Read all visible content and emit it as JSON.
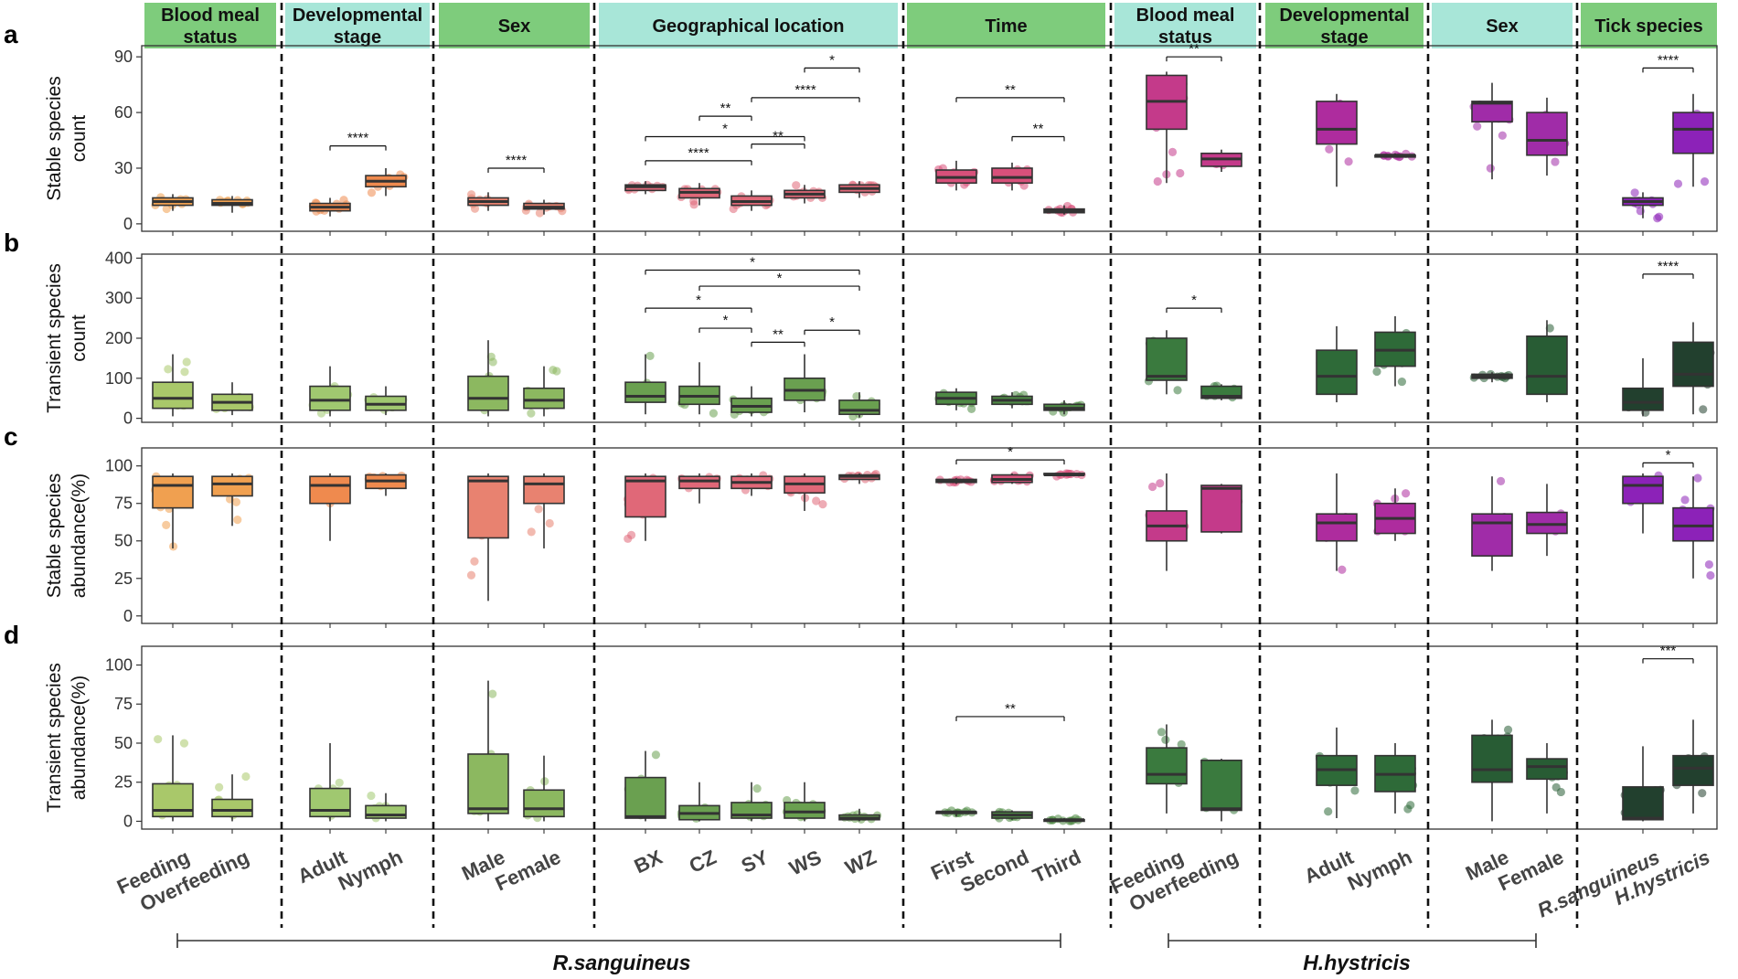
{
  "figure": {
    "panel_letters": [
      "a",
      "b",
      "c",
      "d"
    ],
    "y_labels": [
      [
        "Stable species",
        "count"
      ],
      [
        "Transient species",
        "count"
      ],
      [
        "Stable species",
        "abundance(%)"
      ],
      [
        "Transient species",
        "abundance(%)"
      ]
    ],
    "headers": [
      {
        "lines": [
          "Blood meal",
          "status"
        ],
        "color": "#7ECC7C"
      },
      {
        "lines": [
          "Developmental",
          "stage"
        ],
        "color": "#A8E6D8"
      },
      {
        "lines": [
          "Sex"
        ],
        "color": "#7ECC7C"
      },
      {
        "lines": [
          "Geographical location"
        ],
        "color": "#A8E6D8"
      },
      {
        "lines": [
          "Time"
        ],
        "color": "#7ECC7C"
      },
      {
        "lines": [
          "Blood meal",
          "status"
        ],
        "color": "#A8E6D8"
      },
      {
        "lines": [
          "Developmental",
          "stage"
        ],
        "color": "#7ECC7C"
      },
      {
        "lines": [
          "Sex"
        ],
        "color": "#A8E6D8"
      },
      {
        "lines": [
          "Tick species"
        ],
        "color": "#7ECC7C"
      }
    ],
    "host_labels": [
      "R.sanguineus",
      "H.hystricis"
    ]
  },
  "chart_data": [
    {
      "type": "box",
      "panel": "a",
      "ylabel": "Stable species count",
      "ylim": [
        -4,
        96
      ],
      "yticks": [
        0,
        30,
        60,
        90
      ],
      "categories": [
        "Feeding",
        "Overfeeding",
        "Adult",
        "Nymph",
        "Male",
        "Female",
        "BX",
        "CZ",
        "SY",
        "WS",
        "WZ",
        "First",
        "Second",
        "Third",
        "Feeding",
        "Overfeeding",
        "Adult",
        "Nymph",
        "Male",
        "Female",
        "R.sanguineus",
        "H.hystricis"
      ],
      "colors": [
        "#F0A050",
        "#F0A050",
        "#EF8A4E",
        "#EF8A4E",
        "#E88270",
        "#E88270",
        "#E06878",
        "#E06878",
        "#E06878",
        "#E06878",
        "#E06878",
        "#D8507A",
        "#D8507A",
        "#D8507A",
        "#C43A8A",
        "#C43A8A",
        "#AE2C9E",
        "#AE2C9E",
        "#A02CA8",
        "#A02CA8",
        "#8C22B8",
        "#8C22B8"
      ],
      "boxes": [
        [
          7,
          10,
          12,
          14,
          16
        ],
        [
          6,
          10,
          11,
          13,
          15
        ],
        [
          4,
          7,
          9,
          11,
          14
        ],
        [
          15,
          20,
          23,
          26,
          30
        ],
        [
          7,
          10,
          12,
          14,
          17
        ],
        [
          5,
          8,
          9,
          11,
          13
        ],
        [
          16,
          18,
          20,
          21,
          23
        ],
        [
          10,
          14,
          17,
          19,
          22
        ],
        [
          7,
          10,
          12,
          15,
          18
        ],
        [
          11,
          14,
          16,
          18,
          21
        ],
        [
          14,
          17,
          19,
          21,
          23
        ],
        [
          18,
          22,
          25,
          29,
          34
        ],
        [
          18,
          22,
          25,
          30,
          33
        ],
        [
          5,
          6,
          7,
          8,
          10
        ],
        [
          22,
          51,
          66,
          80,
          82
        ],
        [
          28,
          31,
          35,
          38,
          40
        ],
        [
          20,
          43,
          51,
          66,
          70
        ],
        [
          36,
          36,
          37,
          37,
          38
        ],
        [
          24,
          55,
          65,
          66,
          76
        ],
        [
          26,
          37,
          45,
          60,
          68
        ],
        [
          3,
          10,
          12,
          14,
          17
        ],
        [
          20,
          38,
          51,
          60,
          70
        ]
      ],
      "annotations": [
        {
          "from": 2,
          "to": 3,
          "y": 42,
          "label": "****"
        },
        {
          "from": 4,
          "to": 5,
          "y": 30,
          "label": "****"
        },
        {
          "from": 6,
          "to": 8,
          "y": 34,
          "label": "****"
        },
        {
          "from": 6,
          "to": 9,
          "y": 47,
          "label": "*"
        },
        {
          "from": 7,
          "to": 8,
          "y": 58,
          "label": "**"
        },
        {
          "from": 8,
          "to": 9,
          "y": 43,
          "label": "**"
        },
        {
          "from": 8,
          "to": 10,
          "y": 68,
          "label": "****"
        },
        {
          "from": 9,
          "to": 10,
          "y": 84,
          "label": "*"
        },
        {
          "from": 11,
          "to": 13,
          "y": 68,
          "label": "**"
        },
        {
          "from": 12,
          "to": 13,
          "y": 47,
          "label": "**"
        },
        {
          "from": 14,
          "to": 15,
          "y": 90,
          "label": "**"
        },
        {
          "from": 20,
          "to": 21,
          "y": 84,
          "label": "****"
        }
      ]
    },
    {
      "type": "box",
      "panel": "b",
      "ylabel": "Transient species count",
      "ylim": [
        -10,
        410
      ],
      "yticks": [
        0,
        100,
        200,
        300,
        400
      ],
      "categories": [
        "Feeding",
        "Overfeeding",
        "Adult",
        "Nymph",
        "Male",
        "Female",
        "BX",
        "CZ",
        "SY",
        "WS",
        "WZ",
        "First",
        "Second",
        "Third",
        "Feeding",
        "Overfeeding",
        "Adult",
        "Nymph",
        "Male",
        "Female",
        "R.sanguineus",
        "H.hystricis"
      ],
      "colors": [
        "#A9C86A",
        "#A9C86A",
        "#A0C870",
        "#A0C870",
        "#8CB860",
        "#8CB860",
        "#6AA050",
        "#6AA050",
        "#6AA050",
        "#6AA050",
        "#6AA050",
        "#4E8A44",
        "#4E8A44",
        "#4E8A44",
        "#3A7A3E",
        "#3A7A3E",
        "#2E6A38",
        "#2E6A38",
        "#285C34",
        "#285C34",
        "#22402E",
        "#22402E"
      ],
      "boxes": [
        [
          5,
          25,
          50,
          90,
          160
        ],
        [
          8,
          20,
          40,
          60,
          90
        ],
        [
          5,
          20,
          45,
          80,
          130
        ],
        [
          8,
          20,
          35,
          55,
          80
        ],
        [
          5,
          20,
          50,
          105,
          195
        ],
        [
          5,
          25,
          45,
          75,
          130
        ],
        [
          10,
          40,
          55,
          90,
          160
        ],
        [
          10,
          35,
          55,
          80,
          140
        ],
        [
          5,
          15,
          30,
          50,
          80
        ],
        [
          15,
          45,
          70,
          100,
          160
        ],
        [
          2,
          10,
          20,
          45,
          65
        ],
        [
          20,
          35,
          50,
          65,
          75
        ],
        [
          25,
          35,
          45,
          55,
          65
        ],
        [
          10,
          20,
          25,
          35,
          45
        ],
        [
          60,
          95,
          105,
          200,
          220
        ],
        [
          45,
          50,
          55,
          80,
          85
        ],
        [
          40,
          60,
          105,
          170,
          230
        ],
        [
          80,
          130,
          170,
          215,
          255
        ],
        [
          90,
          100,
          105,
          110,
          115
        ],
        [
          40,
          60,
          105,
          205,
          245
        ],
        [
          5,
          20,
          40,
          75,
          150
        ],
        [
          10,
          80,
          110,
          190,
          240
        ]
      ],
      "annotations": [
        {
          "from": 6,
          "to": 10,
          "y": 370,
          "label": "*"
        },
        {
          "from": 7,
          "to": 10,
          "y": 330,
          "label": "*"
        },
        {
          "from": 6,
          "to": 8,
          "y": 275,
          "label": "*"
        },
        {
          "from": 7,
          "to": 8,
          "y": 225,
          "label": "*"
        },
        {
          "from": 8,
          "to": 9,
          "y": 190,
          "label": "**"
        },
        {
          "from": 9,
          "to": 10,
          "y": 220,
          "label": "*"
        },
        {
          "from": 14,
          "to": 15,
          "y": 275,
          "label": "*"
        },
        {
          "from": 20,
          "to": 21,
          "y": 360,
          "label": "****"
        }
      ]
    },
    {
      "type": "box",
      "panel": "c",
      "ylabel": "Stable species abundance(%)",
      "ylim": [
        -5,
        112
      ],
      "yticks": [
        0,
        25,
        50,
        75,
        100
      ],
      "categories": [
        "Feeding",
        "Overfeeding",
        "Adult",
        "Nymph",
        "Male",
        "Female",
        "BX",
        "CZ",
        "SY",
        "WS",
        "WZ",
        "First",
        "Second",
        "Third",
        "Feeding",
        "Overfeeding",
        "Adult",
        "Nymph",
        "Male",
        "Female",
        "R.sanguineus",
        "H.hystricis"
      ],
      "colors": [
        "#F0A050",
        "#F0A050",
        "#EF8A4E",
        "#EF8A4E",
        "#E88270",
        "#E88270",
        "#E06878",
        "#E06878",
        "#E06878",
        "#E06878",
        "#E06878",
        "#D8507A",
        "#D8507A",
        "#D8507A",
        "#C43A8A",
        "#C43A8A",
        "#AE2C9E",
        "#AE2C9E",
        "#A02CA8",
        "#A02CA8",
        "#8C22B8",
        "#8C22B8"
      ],
      "boxes": [
        [
          45,
          72,
          87,
          93,
          95
        ],
        [
          60,
          80,
          88,
          93,
          95
        ],
        [
          50,
          75,
          87,
          93,
          95
        ],
        [
          80,
          85,
          90,
          94,
          95
        ],
        [
          10,
          52,
          90,
          93,
          95
        ],
        [
          45,
          75,
          88,
          93,
          95
        ],
        [
          50,
          66,
          90,
          93,
          95
        ],
        [
          75,
          85,
          90,
          93,
          95
        ],
        [
          80,
          85,
          89,
          93,
          95
        ],
        [
          70,
          82,
          88,
          93,
          95
        ],
        [
          88,
          91,
          93,
          94,
          95
        ],
        [
          88,
          89,
          90,
          91,
          92
        ],
        [
          88,
          89,
          91,
          94,
          95
        ],
        [
          93,
          94,
          94,
          95,
          95
        ],
        [
          30,
          50,
          60,
          70,
          95
        ],
        [
          55,
          56,
          85,
          87,
          88
        ],
        [
          30,
          50,
          62,
          68,
          95
        ],
        [
          50,
          55,
          65,
          75,
          85
        ],
        [
          30,
          40,
          62,
          68,
          93
        ],
        [
          40,
          55,
          61,
          69,
          88
        ],
        [
          55,
          75,
          87,
          93,
          95
        ],
        [
          25,
          50,
          60,
          72,
          93
        ]
      ],
      "annotations": [
        {
          "from": 11,
          "to": 13,
          "y": 104,
          "label": "*"
        },
        {
          "from": 20,
          "to": 21,
          "y": 102,
          "label": "*"
        }
      ]
    },
    {
      "type": "box",
      "panel": "d",
      "ylabel": "Transient species abundance(%)",
      "ylim": [
        -5,
        112
      ],
      "yticks": [
        0,
        25,
        50,
        75,
        100
      ],
      "categories": [
        "Feeding",
        "Overfeeding",
        "Adult",
        "Nymph",
        "Male",
        "Female",
        "BX",
        "CZ",
        "SY",
        "WS",
        "WZ",
        "First",
        "Second",
        "Third",
        "Feeding",
        "Overfeeding",
        "Adult",
        "Nymph",
        "Male",
        "Female",
        "R.sanguineus",
        "H.hystricis"
      ],
      "colors": [
        "#A9C86A",
        "#A9C86A",
        "#A0C870",
        "#A0C870",
        "#8CB860",
        "#8CB860",
        "#6AA050",
        "#6AA050",
        "#6AA050",
        "#6AA050",
        "#6AA050",
        "#4E8A44",
        "#4E8A44",
        "#4E8A44",
        "#3A7A3E",
        "#3A7A3E",
        "#2E6A38",
        "#2E6A38",
        "#285C34",
        "#285C34",
        "#22402E",
        "#22402E"
      ],
      "boxes": [
        [
          0,
          3,
          7,
          24,
          55
        ],
        [
          0,
          3,
          7,
          14,
          30
        ],
        [
          0,
          3,
          7,
          21,
          50
        ],
        [
          0,
          2,
          4,
          10,
          18
        ],
        [
          0,
          5,
          8,
          43,
          90
        ],
        [
          0,
          3,
          8,
          20,
          42
        ],
        [
          0,
          2,
          3,
          28,
          45
        ],
        [
          0,
          1,
          5,
          10,
          25
        ],
        [
          0,
          2,
          4,
          12,
          25
        ],
        [
          0,
          2,
          6,
          12,
          25
        ],
        [
          0,
          1,
          2,
          4,
          8
        ],
        [
          3,
          5,
          6,
          6,
          7
        ],
        [
          1,
          2,
          4,
          6,
          7
        ],
        [
          0,
          0,
          1,
          1,
          2
        ],
        [
          5,
          24,
          30,
          47,
          62
        ],
        [
          0,
          7,
          8,
          39,
          40
        ],
        [
          2,
          23,
          33,
          42,
          60
        ],
        [
          5,
          19,
          30,
          42,
          50
        ],
        [
          0,
          25,
          33,
          55,
          65
        ],
        [
          5,
          27,
          35,
          40,
          50
        ],
        [
          0,
          1,
          2,
          22,
          48
        ],
        [
          5,
          23,
          34,
          42,
          65
        ]
      ],
      "annotations": [
        {
          "from": 11,
          "to": 13,
          "y": 67,
          "label": "**"
        },
        {
          "from": 20,
          "to": 21,
          "y": 104,
          "label": "***"
        }
      ]
    }
  ]
}
